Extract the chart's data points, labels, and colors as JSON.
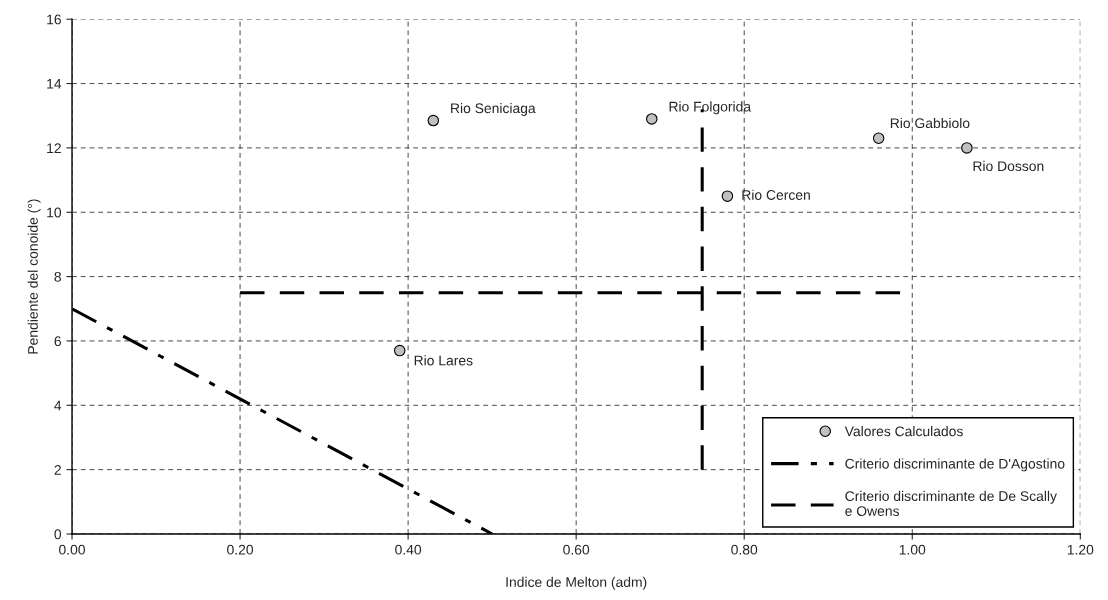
{
  "chart_data": {
    "type": "scatter",
    "xlabel": "Indice de Melton (adm)",
    "ylabel": "Pendiente del conoide (°)",
    "xlim": [
      0,
      1.2
    ],
    "ylim": [
      0,
      16
    ],
    "xticks": [
      {
        "value": 0,
        "label": "0.00"
      },
      {
        "value": 0.2,
        "label": "0.20"
      },
      {
        "value": 0.4,
        "label": "0.40"
      },
      {
        "value": 0.6,
        "label": "0.60"
      },
      {
        "value": 0.8,
        "label": "0.80"
      },
      {
        "value": 1.0,
        "label": "1.00"
      },
      {
        "value": 1.2,
        "label": "1.20"
      }
    ],
    "yticks": [
      0,
      2,
      4,
      6,
      8,
      10,
      12,
      14,
      16
    ],
    "grid": true,
    "legend": "bottom right",
    "series": [
      {
        "name": "Valores Calculados",
        "marker": "circle",
        "color": "#c0c0c0",
        "x": [
          0.43,
          0.69,
          0.78,
          0.96,
          1.065,
          0.39
        ],
        "values": [
          12.85,
          12.9,
          10.5,
          12.3,
          12.0,
          5.7
        ]
      },
      {
        "name": "Criterio discriminante de D'Agostino",
        "type": "line",
        "line_style": "dashdot",
        "color": "#000000",
        "x": [
          0,
          0.5
        ],
        "values": [
          7,
          0
        ]
      },
      {
        "name": "Criterio discriminante de De Scally\ne Owens",
        "type": "line",
        "line_style": "dashed",
        "color": "#000000",
        "x": [
          0.2,
          1.0,
          null,
          0.75,
          0.75
        ],
        "values": [
          7.5,
          7.5,
          null,
          2,
          13.2
        ]
      }
    ],
    "annotations": [
      {
        "text": "Rio Seniciaga",
        "x": 0.43,
        "y": 12.85
      },
      {
        "text": "Rio Folgorida",
        "x": 0.69,
        "y": 12.9
      },
      {
        "text": "Rio Cercen",
        "x": 0.78,
        "y": 10.5
      },
      {
        "text": "Rio Gabbiolo",
        "x": 0.96,
        "y": 12.3
      },
      {
        "text": "Rio Dosson",
        "x": 1.065,
        "y": 12.0
      },
      {
        "text": "Rio Lares",
        "x": 0.39,
        "y": 5.7
      }
    ]
  }
}
